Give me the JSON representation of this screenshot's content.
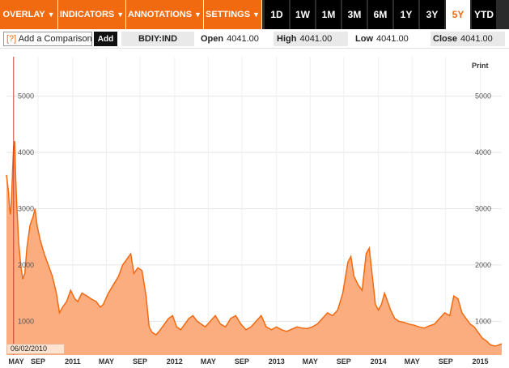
{
  "toolbar": {
    "menus": [
      {
        "label": "OVERLAY"
      },
      {
        "label": "INDICATORS"
      },
      {
        "label": "ANNOTATIONS"
      },
      {
        "label": "SETTINGS"
      }
    ],
    "ranges": [
      "1D",
      "1W",
      "1M",
      "3M",
      "6M",
      "1Y",
      "3Y",
      "5Y",
      "YTD"
    ],
    "active_range": "5Y",
    "colors": {
      "menu_bg": "#f26a10",
      "range_bg": "#000000",
      "active_text": "#f26a10"
    }
  },
  "infobar": {
    "compare_prefix": "[?]",
    "compare_label": "Add a Comparison",
    "add_label": "Add",
    "ticker": "BDIY:IND",
    "open_label": "Open",
    "open_value": "4041.00",
    "high_label": "High",
    "high_value": "4041.00",
    "low_label": "Low",
    "low_value": "4041.00",
    "close_label": "Close",
    "close_value": "4041.00"
  },
  "print_label": "Print",
  "crosshair_date": "06/02/2010",
  "chart_data": {
    "type": "area",
    "colors": {
      "fill": "#fbad80",
      "line": "#f26a10",
      "crosshair": "#c0392b"
    },
    "ylim": [
      400,
      5700
    ],
    "yticks": [
      1000,
      2000,
      3000,
      4000,
      5000
    ],
    "ytick_labels": [
      "1000",
      "2000",
      "3000",
      "4000",
      "5000"
    ],
    "xlim": [
      2010.35,
      2015.21
    ],
    "xticks": [
      {
        "label": "MAY",
        "x": 2010.33
      },
      {
        "label": "SEP",
        "x": 2010.66
      },
      {
        "label": "2011",
        "x": 2011.0
      },
      {
        "label": "MAY",
        "x": 2011.33
      },
      {
        "label": "SEP",
        "x": 2011.66
      },
      {
        "label": "2012",
        "x": 2012.0
      },
      {
        "label": "MAY",
        "x": 2012.33
      },
      {
        "label": "SEP",
        "x": 2012.66
      },
      {
        "label": "2013",
        "x": 2013.0
      },
      {
        "label": "MAY",
        "x": 2013.33
      },
      {
        "label": "SEP",
        "x": 2013.66
      },
      {
        "label": "2014",
        "x": 2014.0
      },
      {
        "label": "MAY",
        "x": 2014.33
      },
      {
        "label": "SEP",
        "x": 2014.66
      },
      {
        "label": "2015",
        "x": 2015.0
      }
    ],
    "crosshair_x": 2010.42,
    "points": [
      [
        2010.35,
        3600
      ],
      [
        2010.37,
        3300
      ],
      [
        2010.38,
        3000
      ],
      [
        2010.39,
        2900
      ],
      [
        2010.4,
        3200
      ],
      [
        2010.41,
        3700
      ],
      [
        2010.42,
        4100
      ],
      [
        2010.43,
        4200
      ],
      [
        2010.44,
        3600
      ],
      [
        2010.45,
        3100
      ],
      [
        2010.47,
        2400
      ],
      [
        2010.49,
        2000
      ],
      [
        2010.51,
        1750
      ],
      [
        2010.53,
        1850
      ],
      [
        2010.55,
        2300
      ],
      [
        2010.58,
        2700
      ],
      [
        2010.61,
        2850
      ],
      [
        2010.63,
        3000
      ],
      [
        2010.65,
        2700
      ],
      [
        2010.68,
        2450
      ],
      [
        2010.72,
        2200
      ],
      [
        2010.76,
        2000
      ],
      [
        2010.8,
        1800
      ],
      [
        2010.84,
        1500
      ],
      [
        2010.87,
        1150
      ],
      [
        2010.9,
        1250
      ],
      [
        2010.94,
        1350
      ],
      [
        2010.98,
        1550
      ],
      [
        2011.02,
        1400
      ],
      [
        2011.05,
        1350
      ],
      [
        2011.09,
        1500
      ],
      [
        2011.14,
        1450
      ],
      [
        2011.18,
        1400
      ],
      [
        2011.23,
        1350
      ],
      [
        2011.27,
        1250
      ],
      [
        2011.3,
        1300
      ],
      [
        2011.35,
        1500
      ],
      [
        2011.4,
        1650
      ],
      [
        2011.45,
        1800
      ],
      [
        2011.49,
        2000
      ],
      [
        2011.53,
        2100
      ],
      [
        2011.57,
        2200
      ],
      [
        2011.6,
        1850
      ],
      [
        2011.64,
        1950
      ],
      [
        2011.68,
        1900
      ],
      [
        2011.72,
        1450
      ],
      [
        2011.75,
        900
      ],
      [
        2011.78,
        800
      ],
      [
        2011.82,
        760
      ],
      [
        2011.86,
        850
      ],
      [
        2011.9,
        950
      ],
      [
        2011.94,
        1050
      ],
      [
        2011.98,
        1100
      ],
      [
        2012.02,
        900
      ],
      [
        2012.06,
        850
      ],
      [
        2012.1,
        950
      ],
      [
        2012.14,
        1050
      ],
      [
        2012.18,
        1100
      ],
      [
        2012.22,
        1000
      ],
      [
        2012.26,
        950
      ],
      [
        2012.3,
        900
      ],
      [
        2012.35,
        1000
      ],
      [
        2012.4,
        1100
      ],
      [
        2012.45,
        950
      ],
      [
        2012.5,
        900
      ],
      [
        2012.55,
        1050
      ],
      [
        2012.6,
        1100
      ],
      [
        2012.65,
        950
      ],
      [
        2012.7,
        850
      ],
      [
        2012.75,
        900
      ],
      [
        2012.8,
        1000
      ],
      [
        2012.85,
        1100
      ],
      [
        2012.9,
        900
      ],
      [
        2012.95,
        850
      ],
      [
        2013.0,
        900
      ],
      [
        2013.05,
        850
      ],
      [
        2013.1,
        820
      ],
      [
        2013.15,
        860
      ],
      [
        2013.2,
        900
      ],
      [
        2013.25,
        880
      ],
      [
        2013.3,
        870
      ],
      [
        2013.35,
        900
      ],
      [
        2013.4,
        950
      ],
      [
        2013.45,
        1050
      ],
      [
        2013.5,
        1150
      ],
      [
        2013.55,
        1100
      ],
      [
        2013.6,
        1200
      ],
      [
        2013.65,
        1500
      ],
      [
        2013.7,
        2050
      ],
      [
        2013.73,
        2150
      ],
      [
        2013.76,
        1800
      ],
      [
        2013.8,
        1650
      ],
      [
        2013.84,
        1550
      ],
      [
        2013.88,
        2200
      ],
      [
        2013.91,
        2300
      ],
      [
        2013.94,
        1800
      ],
      [
        2013.97,
        1300
      ],
      [
        2014.0,
        1200
      ],
      [
        2014.03,
        1300
      ],
      [
        2014.06,
        1500
      ],
      [
        2014.09,
        1350
      ],
      [
        2014.12,
        1200
      ],
      [
        2014.16,
        1050
      ],
      [
        2014.2,
        1000
      ],
      [
        2014.25,
        980
      ],
      [
        2014.3,
        950
      ],
      [
        2014.35,
        930
      ],
      [
        2014.4,
        900
      ],
      [
        2014.45,
        880
      ],
      [
        2014.5,
        920
      ],
      [
        2014.55,
        950
      ],
      [
        2014.6,
        1050
      ],
      [
        2014.65,
        1150
      ],
      [
        2014.7,
        1100
      ],
      [
        2014.74,
        1450
      ],
      [
        2014.78,
        1400
      ],
      [
        2014.82,
        1150
      ],
      [
        2014.86,
        1050
      ],
      [
        2014.9,
        950
      ],
      [
        2014.94,
        900
      ],
      [
        2014.98,
        800
      ],
      [
        2015.02,
        700
      ],
      [
        2015.06,
        650
      ],
      [
        2015.1,
        580
      ],
      [
        2015.14,
        560
      ],
      [
        2015.17,
        570
      ],
      [
        2015.21,
        600
      ]
    ]
  }
}
